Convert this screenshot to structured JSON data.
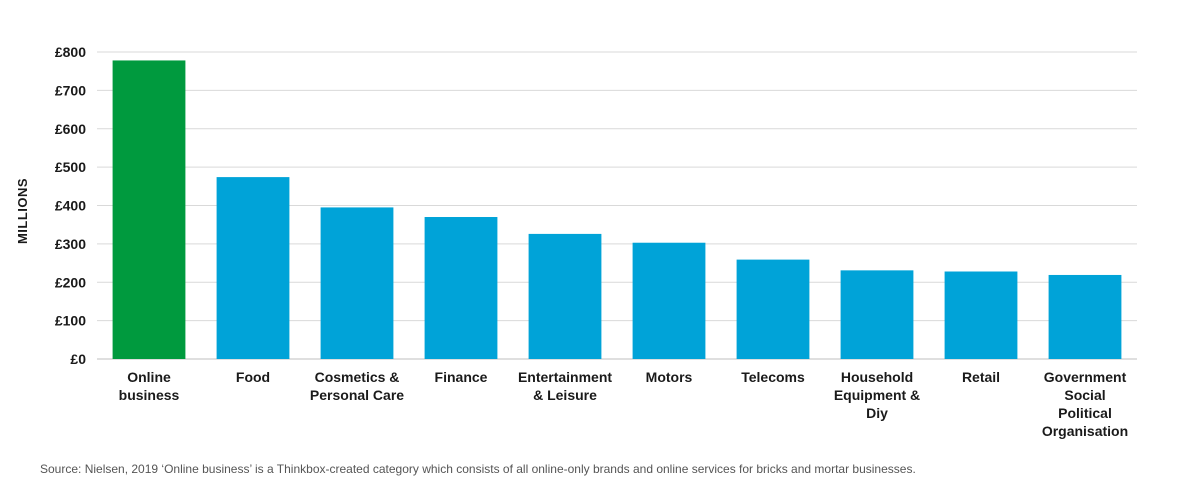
{
  "chart_data": {
    "type": "bar",
    "categories": [
      "Online business",
      "Food",
      "Cosmetics & Personal Care",
      "Finance",
      "Entertainment & Leisure",
      "Motors",
      "Telecoms",
      "Household Equipment & Diy",
      "Retail",
      "Government Social Political Organisation"
    ],
    "category_label_lines": [
      [
        "Online",
        "business"
      ],
      [
        "Food"
      ],
      [
        "Cosmetics &",
        "Personal Care"
      ],
      [
        "Finance"
      ],
      [
        "Entertainment",
        "& Leisure"
      ],
      [
        "Motors"
      ],
      [
        "Telecoms"
      ],
      [
        "Household",
        "Equipment &",
        "Diy"
      ],
      [
        "Retail"
      ],
      [
        "Government",
        "Social",
        "Political",
        "Organisation"
      ]
    ],
    "values": [
      778,
      474,
      395,
      370,
      326,
      303,
      259,
      231,
      228,
      219
    ],
    "ylabel": "MILLIONS",
    "ylim": [
      0,
      800
    ],
    "yticks": [
      0,
      100,
      200,
      300,
      400,
      500,
      600,
      700,
      800
    ],
    "ytick_labels": [
      "£0",
      "£100",
      "£200",
      "£300",
      "£400",
      "£500",
      "£600",
      "£700",
      "£800"
    ],
    "grid": true,
    "colors": {
      "highlight": "#009a3e",
      "bar": "#00a3d8",
      "grid": "#d9d9d9"
    },
    "highlight_index": 0
  },
  "source_note": "Source: Nielsen, 2019 ‘Online business’ is a Thinkbox-created category which consists of all online-only brands and online services for bricks and mortar businesses."
}
